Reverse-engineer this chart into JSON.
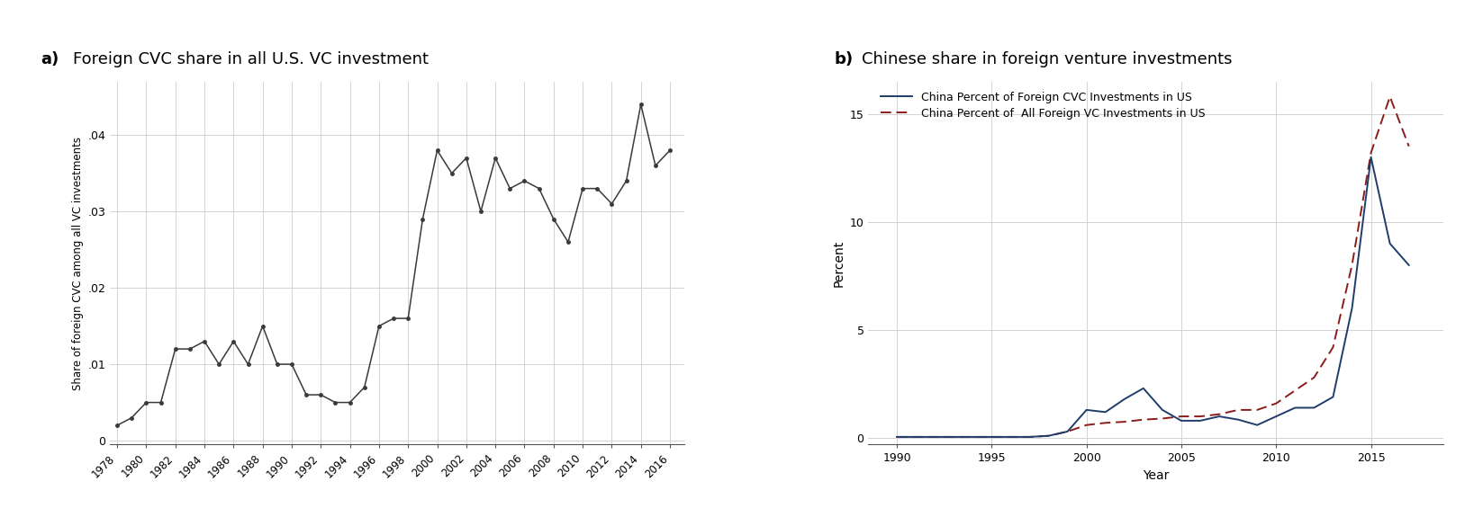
{
  "panel_a": {
    "title_bold": "a)",
    "title_normal": " Foreign CVC share in all U.S. VC investment",
    "ylabel": "Share of foreign CVC among all VC investments",
    "years": [
      1978,
      1979,
      1980,
      1981,
      1982,
      1983,
      1984,
      1985,
      1986,
      1987,
      1988,
      1989,
      1990,
      1991,
      1992,
      1993,
      1994,
      1995,
      1996,
      1997,
      1998,
      1999,
      2000,
      2001,
      2002,
      2003,
      2004,
      2005,
      2006,
      2007,
      2008,
      2009,
      2010,
      2011,
      2012,
      2013,
      2014,
      2015,
      2016
    ],
    "values": [
      0.002,
      0.003,
      0.005,
      0.005,
      0.012,
      0.012,
      0.013,
      0.01,
      0.013,
      0.01,
      0.015,
      0.01,
      0.01,
      0.006,
      0.006,
      0.005,
      0.005,
      0.007,
      0.015,
      0.016,
      0.016,
      0.029,
      0.038,
      0.035,
      0.037,
      0.03,
      0.037,
      0.033,
      0.034,
      0.033,
      0.029,
      0.026,
      0.033,
      0.033,
      0.031,
      0.034,
      0.044,
      0.036,
      0.038
    ],
    "yticks": [
      0,
      0.01,
      0.02,
      0.03,
      0.04
    ],
    "ytick_labels": [
      "0",
      ".01",
      ".02",
      ".03",
      ".04"
    ],
    "xtick_years": [
      1978,
      1980,
      1982,
      1984,
      1986,
      1988,
      1990,
      1992,
      1994,
      1996,
      1998,
      2000,
      2002,
      2004,
      2006,
      2008,
      2010,
      2012,
      2014,
      2016
    ],
    "line_color": "#3a3a3a",
    "marker": "o",
    "marker_size": 2.5,
    "line_width": 1.1
  },
  "panel_b": {
    "title_bold": "b)",
    "title_normal": " Chinese share in foreign venture investments",
    "xlabel": "Year",
    "ylabel": "Percent",
    "years": [
      1990,
      1991,
      1992,
      1993,
      1994,
      1995,
      1996,
      1997,
      1998,
      1999,
      2000,
      2001,
      2002,
      2003,
      2004,
      2005,
      2006,
      2007,
      2008,
      2009,
      2010,
      2011,
      2012,
      2013,
      2014,
      2015,
      2016,
      2017
    ],
    "cvc_values": [
      0.05,
      0.05,
      0.05,
      0.05,
      0.05,
      0.05,
      0.05,
      0.05,
      0.1,
      0.3,
      1.3,
      1.2,
      1.8,
      2.3,
      1.3,
      0.8,
      0.8,
      1.0,
      0.85,
      0.6,
      1.0,
      1.4,
      1.4,
      1.9,
      6.0,
      13.0,
      9.0,
      8.0
    ],
    "all_vc_values": [
      0.05,
      0.05,
      0.05,
      0.05,
      0.05,
      0.05,
      0.05,
      0.05,
      0.1,
      0.3,
      0.6,
      0.7,
      0.75,
      0.85,
      0.9,
      1.0,
      1.0,
      1.1,
      1.3,
      1.3,
      1.6,
      2.2,
      2.8,
      4.2,
      8.0,
      13.2,
      15.8,
      13.5
    ],
    "cvc_color": "#1f3d6b",
    "all_vc_color": "#8b1c1c",
    "cvc_label": "China Percent of Foreign CVC Investments in US",
    "all_vc_label": "China Percent of  All Foreign VC Investments in US",
    "yticks": [
      0,
      5,
      10,
      15
    ],
    "ytick_labels": [
      "0",
      "5",
      "10",
      "15"
    ],
    "xtick_years": [
      1990,
      1995,
      2000,
      2005,
      2010,
      2015
    ],
    "line_width": 1.4
  },
  "background_color": "#ffffff",
  "grid_color": "#cccccc"
}
